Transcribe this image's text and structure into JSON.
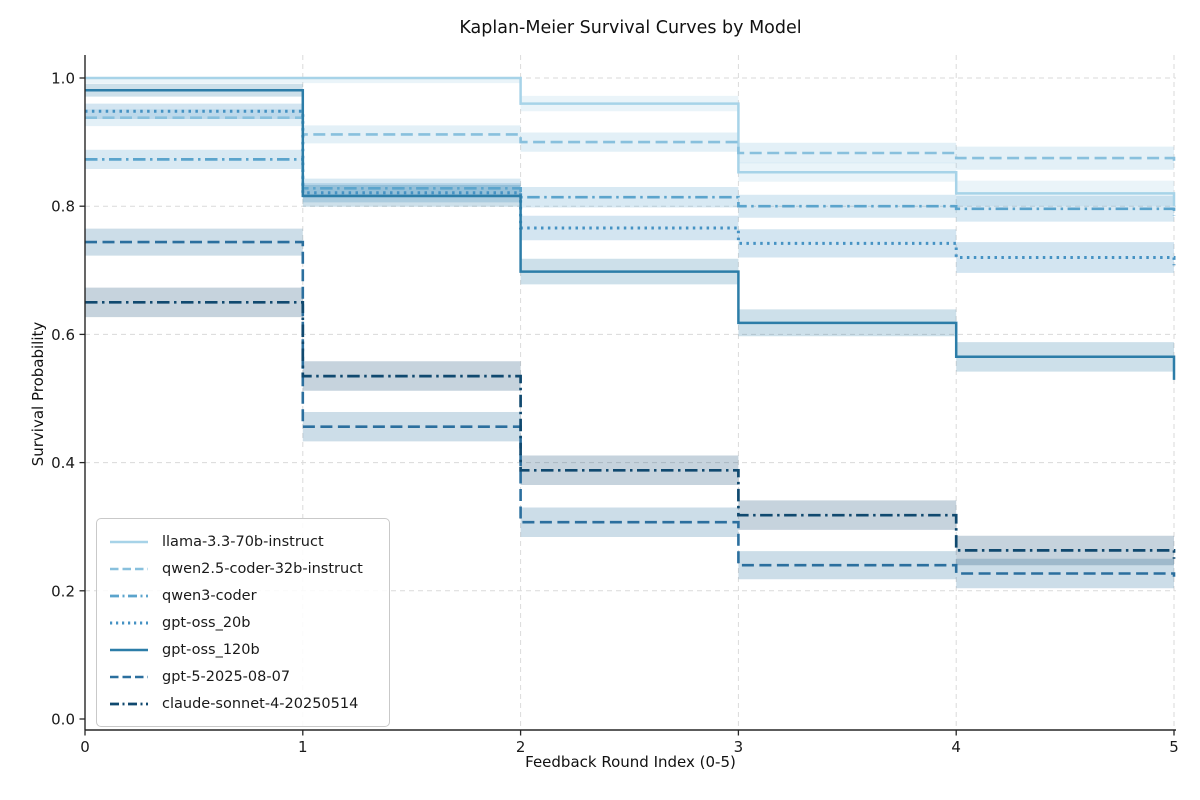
{
  "chart_data": {
    "type": "line",
    "subtype": "kaplan-meier-step-with-confidence-bands",
    "title": "Kaplan-Meier Survival Curves by Model",
    "xlabel": "Feedback Round Index (0-5)",
    "ylabel": "Survival Probability",
    "x_steps": [
      0,
      1,
      2,
      3,
      4,
      5
    ],
    "xticks": [
      "0",
      "1",
      "2",
      "3",
      "4",
      "5"
    ],
    "yticks": [
      "0.0",
      "0.2",
      "0.4",
      "0.6",
      "0.8",
      "1.0"
    ],
    "ytick_values": [
      0.0,
      0.2,
      0.4,
      0.6,
      0.8,
      1.0
    ],
    "xlim": [
      0,
      5
    ],
    "ylim": [
      0,
      1.035
    ],
    "grid": true,
    "grid_color": "#dadada",
    "legend_position": "lower-left",
    "series": [
      {
        "name": "llama-3.3-70b-instruct",
        "color": "#a7d3e8",
        "linestyle": "solid",
        "segment_values": [
          1.0,
          1.0,
          0.96,
          0.853,
          0.82
        ],
        "final_value": 0.8,
        "ci_halfwidth": [
          0.008,
          0.008,
          0.012,
          0.015,
          0.02
        ]
      },
      {
        "name": "qwen2.5-coder-32b-instruct",
        "color": "#88c0dd",
        "linestyle": "dashed",
        "segment_values": [
          0.938,
          0.912,
          0.9,
          0.883,
          0.875
        ],
        "final_value": 0.868,
        "ci_halfwidth": [
          0.013,
          0.014,
          0.015,
          0.016,
          0.018
        ]
      },
      {
        "name": "qwen3-coder",
        "color": "#5ba4cc",
        "linestyle": "dashdot",
        "segment_values": [
          0.873,
          0.828,
          0.814,
          0.8,
          0.796
        ],
        "final_value": 0.785,
        "ci_halfwidth": [
          0.015,
          0.015,
          0.016,
          0.018,
          0.02
        ]
      },
      {
        "name": "gpt-oss_20b",
        "color": "#4592c3",
        "linestyle": "dotted",
        "segment_values": [
          0.948,
          0.821,
          0.766,
          0.742,
          0.72
        ],
        "final_value": 0.708,
        "ci_halfwidth": [
          0.012,
          0.015,
          0.019,
          0.022,
          0.024
        ]
      },
      {
        "name": "gpt-oss_120b",
        "color": "#2c7da8",
        "linestyle": "solid",
        "segment_values": [
          0.981,
          0.816,
          0.698,
          0.618,
          0.565
        ],
        "final_value": 0.529,
        "ci_halfwidth": [
          0.01,
          0.017,
          0.02,
          0.021,
          0.023
        ]
      },
      {
        "name": "gpt-5-2025-08-07",
        "color": "#2b6f9e",
        "linestyle": "dashed",
        "segment_values": [
          0.744,
          0.456,
          0.307,
          0.24,
          0.227
        ],
        "final_value": 0.222,
        "ci_halfwidth": [
          0.021,
          0.023,
          0.023,
          0.022,
          0.023
        ]
      },
      {
        "name": "claude-sonnet-4-20250514",
        "color": "#10496f",
        "linestyle": "dashdot",
        "segment_values": [
          0.65,
          0.535,
          0.388,
          0.318,
          0.263
        ],
        "final_value": 0.25,
        "ci_halfwidth": [
          0.023,
          0.023,
          0.023,
          0.023,
          0.023
        ]
      }
    ]
  }
}
